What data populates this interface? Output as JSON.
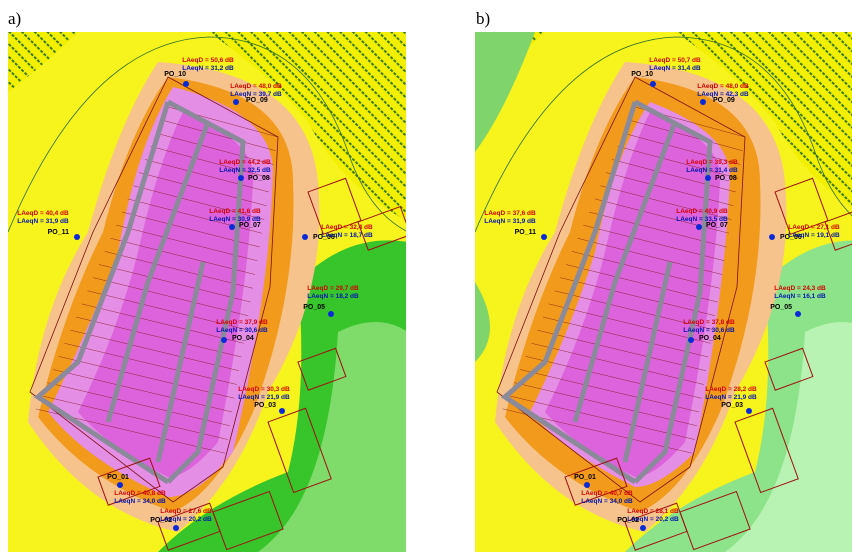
{
  "panels": [
    {
      "label": "a)",
      "receptors": [
        {
          "name": "PO_10",
          "day": "LAeqD = 50,6 dB",
          "night": "LAeqN = 31,2 dB"
        },
        {
          "name": "PO_09",
          "day": "LAeqD = 48,0 dB",
          "night": "LAeqN = 39,7 dB"
        },
        {
          "name": "PO_08",
          "day": "LAeqD = 44,2 dB",
          "night": "LAeqN = 32,5 dB"
        },
        {
          "name": "PO_07",
          "day": "LAeqD = 41,6 dB",
          "night": "LAeqN = 30,9 dB"
        },
        {
          "name": "PO_06",
          "day": "LAeqD = 32,4 dB",
          "night": "LAeqN = 18,7 dB"
        },
        {
          "name": "PO_11",
          "day": "LAeqD = 40,4 dB",
          "night": "LAeqN = 31,9 dB"
        },
        {
          "name": "PO_05",
          "day": "LAeqD = 29,7 dB",
          "night": "LAeqN = 18,2 dB"
        },
        {
          "name": "PO_04",
          "day": "LAeqD = 37,9 dB",
          "night": "LAeqN = 30,6 dB"
        },
        {
          "name": "PO_03",
          "day": "LAeqD = 30,3 dB",
          "night": "LAeqN = 21,9 dB"
        },
        {
          "name": "PO_01",
          "day": "LAeqD = 40,8 dB",
          "night": "LAeqN = 34,0 dB"
        },
        {
          "name": "PO_02",
          "day": "LAeqD = 27,6 dB",
          "night": "LAeqN = 20,2 dB"
        }
      ]
    },
    {
      "label": "b)",
      "receptors": [
        {
          "name": "PO_10",
          "day": "LAeqD = 50,7 dB",
          "night": "LAeqN = 31,4 dB"
        },
        {
          "name": "PO_09",
          "day": "LAeqD = 48,0 dB",
          "night": "LAeqN = 42,3 dB"
        },
        {
          "name": "PO_08",
          "day": "LAeqD = 39,3 dB",
          "night": "LAeqN = 31,4 dB"
        },
        {
          "name": "PO_07",
          "day": "LAeqD = 40,9 dB",
          "night": "LAeqN = 33,5 dB"
        },
        {
          "name": "PO_06",
          "day": "LAeqD = 27,1 dB",
          "night": "LAeqN = 19,1 dB"
        },
        {
          "name": "PO_11",
          "day": "LAeqD = 37,6 dB",
          "night": "LAeqN = 31,9 dB"
        },
        {
          "name": "PO_05",
          "day": "LAeqD = 24,3 dB",
          "night": "LAeqN = 16,1 dB"
        },
        {
          "name": "PO_04",
          "day": "LAeqD = 37,8 dB",
          "night": "LAeqN = 30,6 dB"
        },
        {
          "name": "PO_03",
          "day": "LAeqD = 28,2 dB",
          "night": "LAeqN = 21,9 dB"
        },
        {
          "name": "PO_01",
          "day": "LAeqD = 40,7 dB",
          "night": "LAeqN = 34,0 dB"
        },
        {
          "name": "PO_02",
          "day": "LAeqD = 28,1 dB",
          "night": "LAeqN = 20,2 dB"
        }
      ]
    }
  ]
}
